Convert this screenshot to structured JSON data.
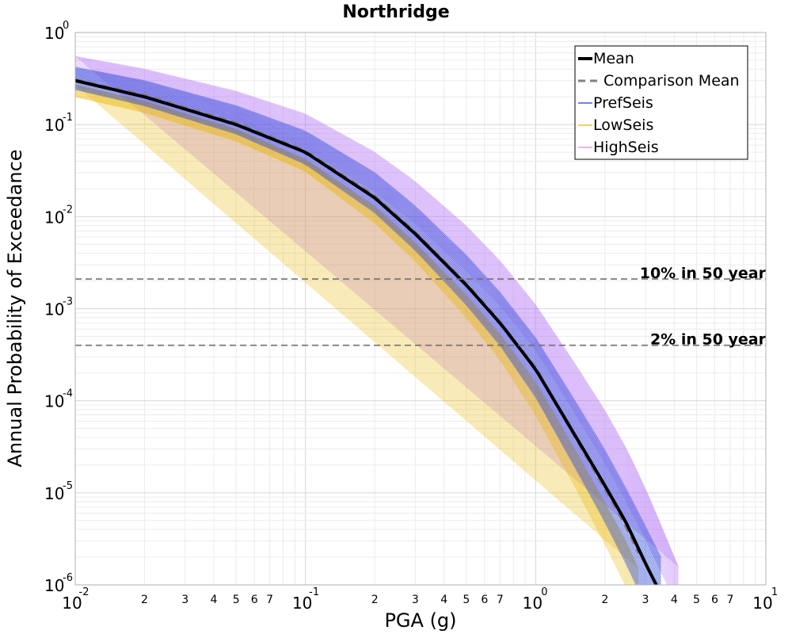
{
  "chart_data": {
    "type": "line",
    "title": "Northridge",
    "xlabel": "PGA (g)",
    "ylabel": "Annual Probability of Exceedance",
    "x_scale": "log",
    "y_scale": "log",
    "xlim": [
      0.01,
      10
    ],
    "ylim": [
      1e-06,
      1
    ],
    "grid": true,
    "legend_position": "top-right",
    "x_major_ticks": [
      {
        "value": 0.01,
        "base": "10",
        "exp": "-2"
      },
      {
        "value": 0.1,
        "base": "10",
        "exp": "-1"
      },
      {
        "value": 1,
        "base": "10",
        "exp": "0"
      },
      {
        "value": 10,
        "base": "10",
        "exp": "1"
      }
    ],
    "y_major_ticks": [
      {
        "value": 1,
        "base": "10",
        "exp": "0"
      },
      {
        "value": 0.1,
        "base": "10",
        "exp": "-1"
      },
      {
        "value": 0.01,
        "base": "10",
        "exp": "-2"
      },
      {
        "value": 0.001,
        "base": "10",
        "exp": "-3"
      },
      {
        "value": 0.0001,
        "base": "10",
        "exp": "-4"
      },
      {
        "value": 1e-05,
        "base": "10",
        "exp": "-5"
      },
      {
        "value": 1e-06,
        "base": "10",
        "exp": "-6"
      }
    ],
    "x_minor_tick_labels": [
      "2",
      "3",
      "4",
      "5",
      "6",
      "7"
    ],
    "reference_lines": [
      {
        "label": "10% in 50 year",
        "y": 0.0021
      },
      {
        "label": "2% in 50 year",
        "y": 0.0004
      }
    ],
    "series": [
      {
        "name": "Mean",
        "style": "solid",
        "color": "#000000",
        "x": [
          0.01,
          0.02,
          0.05,
          0.1,
          0.2,
          0.3,
          0.5,
          0.7,
          1.0,
          1.5,
          2.0,
          2.5,
          3.0,
          3.5
        ],
        "y": [
          0.3,
          0.2,
          0.1,
          0.05,
          0.016,
          0.0065,
          0.0018,
          0.0007,
          0.00022,
          4e-05,
          1.2e-05,
          4.5e-06,
          1.7e-06,
          8e-07
        ]
      },
      {
        "name": "Comparison Mean",
        "style": "dashed",
        "color": "#808080",
        "x": [
          0.01,
          0.02,
          0.05,
          0.1,
          0.2,
          0.3,
          0.5,
          0.7,
          1.0,
          1.5,
          2.0,
          2.5,
          3.0
        ],
        "y": [
          0.31,
          0.21,
          0.105,
          0.052,
          0.017,
          0.0068,
          0.0019,
          0.00072,
          0.00023,
          3.8e-05,
          1.1e-05,
          4e-06,
          1.5e-06
        ]
      },
      {
        "name": "PrefSeis",
        "style": "band",
        "color": "#1f3fd6",
        "x": [
          0.01,
          0.02,
          0.05,
          0.1,
          0.2,
          0.3,
          0.5,
          0.7,
          1.0,
          1.5,
          2.0,
          2.5,
          3.0,
          3.5
        ],
        "y_low": [
          0.24,
          0.16,
          0.079,
          0.037,
          0.011,
          0.0043,
          0.0011,
          0.0004,
          0.00011,
          1.8e-05,
          4.8e-06,
          1.6e-06,
          6e-07,
          3e-07
        ],
        "y_high": [
          0.42,
          0.3,
          0.16,
          0.085,
          0.03,
          0.013,
          0.0038,
          0.0015,
          0.00048,
          9.5e-05,
          2.9e-05,
          1.05e-05,
          4.3e-06,
          2e-06
        ]
      },
      {
        "name": "LowSeis",
        "style": "band",
        "color": "#e8b800",
        "x": [
          0.01,
          0.02,
          0.05,
          0.1,
          0.2,
          0.3,
          0.5,
          0.7,
          1.0,
          1.5,
          2.0,
          2.5,
          3.0
        ],
        "y_low": [
          0.2,
          0.135,
          0.066,
          0.031,
          0.0085,
          0.0033,
          0.0008,
          0.00028,
          7e-05,
          1.1e-05,
          2.8e-06,
          9e-07,
          3e-07
        ],
        "y_high": [
          0.27,
          0.18,
          0.089,
          0.042,
          0.013,
          0.0052,
          0.0014,
          0.00053,
          0.00016,
          2.8e-05,
          7.8e-06,
          2.8e-06,
          1e-06
        ]
      },
      {
        "name": "HighSeis",
        "style": "band",
        "color": "#b06cf5",
        "x": [
          0.01,
          0.02,
          0.05,
          0.1,
          0.2,
          0.3,
          0.5,
          0.7,
          1.0,
          1.5,
          2.0,
          2.5,
          3.0,
          3.5,
          4.0,
          4.5
        ],
        "y_low": [
          0.3,
          0.21,
          0.11,
          0.055,
          0.019,
          0.0085,
          0.0026,
          0.0011,
          0.00036,
          7e-05,
          2.1e-05,
          7.8e-06,
          3.2e-06,
          1.4e-06,
          7e-07,
          4e-07
        ],
        "y_high": [
          0.55,
          0.4,
          0.23,
          0.13,
          0.05,
          0.024,
          0.0079,
          0.0033,
          0.0011,
          0.00024,
          7.8e-05,
          2.9e-05,
          1.1e-05,
          4.5e-06,
          2e-06,
          1e-06
        ]
      }
    ]
  }
}
